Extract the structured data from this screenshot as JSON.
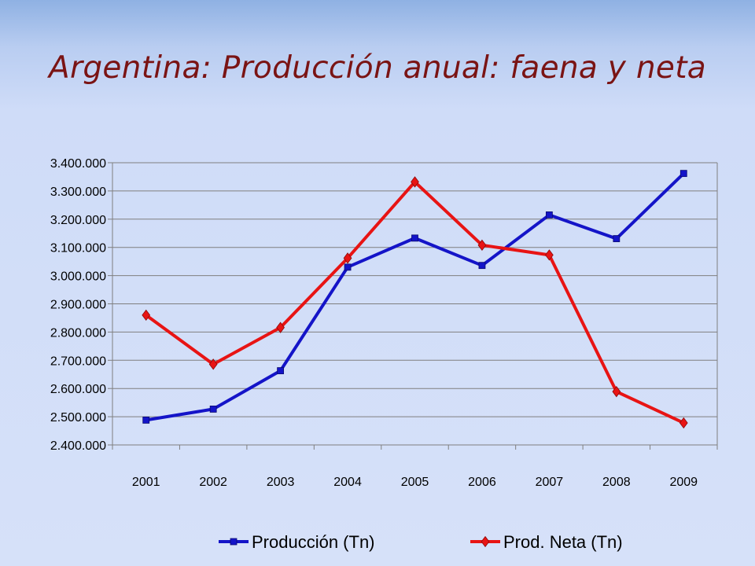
{
  "slide": {
    "title": "Argentina: Producción anual: faena y neta"
  },
  "colors": {
    "produccion": "#1414c8",
    "prod_neta": "#e81414",
    "grid": "#7f7f7f",
    "title": "#7a1414"
  },
  "chart_data": {
    "type": "line",
    "title": "",
    "xlabel": "",
    "ylabel": "",
    "categories": [
      "2001",
      "2002",
      "2003",
      "2004",
      "2005",
      "2006",
      "2007",
      "2008",
      "2009"
    ],
    "ylim": [
      2400000,
      3400000
    ],
    "yticks": [
      2400000,
      2500000,
      2600000,
      2700000,
      2800000,
      2900000,
      3000000,
      3100000,
      3200000,
      3300000,
      3400000
    ],
    "ytick_labels": [
      "2.400.000",
      "2.500.000",
      "2.600.000",
      "2.700.000",
      "2.800.000",
      "2.900.000",
      "3.000.000",
      "3.100.000",
      "3.200.000",
      "3.300.000",
      "3.400.000"
    ],
    "grid": true,
    "legend_position": "bottom",
    "series": [
      {
        "name": "Producción (Tn)",
        "marker": "square",
        "values": [
          2488000,
          2527000,
          2663000,
          3030000,
          3133000,
          3036000,
          3215000,
          3131000,
          3362000
        ]
      },
      {
        "name": "Prod. Neta (Tn)",
        "marker": "diamond",
        "values": [
          2860000,
          2686000,
          2816000,
          3062000,
          3332000,
          3108000,
          3073000,
          2589000,
          2478000
        ]
      }
    ]
  }
}
